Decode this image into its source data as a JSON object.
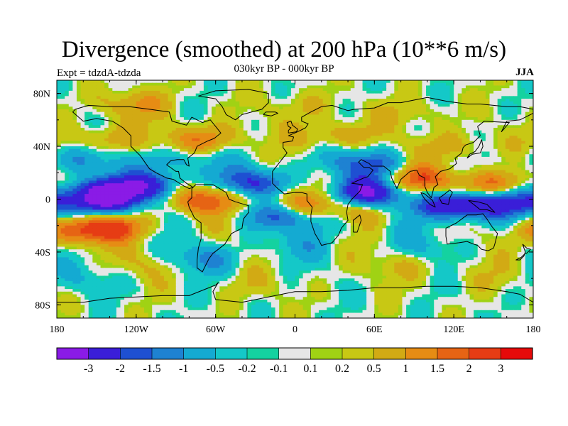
{
  "title": "Divergence (smoothed) at 200 hPa (10**6 m/s)",
  "subtitle": "030kyr BP - 000kyr BP",
  "experiment": "Expt = tdzdA-tdzda",
  "season": "JJA",
  "map": {
    "projection": "cylindrical equidistant",
    "lon_range": [
      -180,
      180
    ],
    "lat_range": [
      -90,
      90
    ],
    "lat_ticks": [
      {
        "value": 80,
        "label": "80N"
      },
      {
        "value": 40,
        "label": "40N"
      },
      {
        "value": 0,
        "label": "0"
      },
      {
        "value": -40,
        "label": "40S"
      },
      {
        "value": -80,
        "label": "80S"
      }
    ],
    "lon_ticks": [
      {
        "value": -180,
        "label": "180"
      },
      {
        "value": -120,
        "label": "120W"
      },
      {
        "value": -60,
        "label": "60W"
      },
      {
        "value": 0,
        "label": "0"
      },
      {
        "value": 60,
        "label": "60E"
      },
      {
        "value": 120,
        "label": "120E"
      },
      {
        "value": 180,
        "label": "180"
      }
    ]
  },
  "colorbar": {
    "colors": [
      "#8a1be6",
      "#3a1ed8",
      "#1e50d2",
      "#1e82d2",
      "#14aad2",
      "#14c8c8",
      "#14d2a0",
      "#e6e6e6",
      "#a0d214",
      "#c8c814",
      "#d2aa14",
      "#e68c14",
      "#e66414",
      "#e63c14",
      "#e60a0a"
    ],
    "labels": [
      "-3",
      "-2",
      "-1.5",
      "-1",
      "-0.5",
      "-0.2",
      "-0.1",
      "0.1",
      "0.2",
      "0.5",
      "1",
      "1.5",
      "2",
      "3"
    ]
  },
  "field_features": [
    {
      "lon": -145,
      "lat": 5,
      "value": -3.2
    },
    {
      "lon": -150,
      "lat": -5,
      "value": -2.0
    },
    {
      "lon": -110,
      "lat": 10,
      "value": -2.0
    },
    {
      "lon": -35,
      "lat": 12,
      "value": -2.0
    },
    {
      "lon": -12,
      "lat": -10,
      "value": -2.5
    },
    {
      "lon": 55,
      "lat": 5,
      "value": -3.0
    },
    {
      "lon": 120,
      "lat": -5,
      "value": -3.0
    },
    {
      "lon": 160,
      "lat": -2,
      "value": -2.0
    },
    {
      "lon": -160,
      "lat": 30,
      "value": -1.0
    },
    {
      "lon": -85,
      "lat": 30,
      "value": -1.0
    },
    {
      "lon": 60,
      "lat": 25,
      "value": -1.5
    },
    {
      "lon": -70,
      "lat": -45,
      "value": -1.0
    },
    {
      "lon": 30,
      "lat": -15,
      "value": -1.0
    },
    {
      "lon": -70,
      "lat": 0,
      "value": 2.0
    },
    {
      "lon": -5,
      "lat": -5,
      "value": 2.5
    },
    {
      "lon": -140,
      "lat": -20,
      "value": 2.0
    },
    {
      "lon": -165,
      "lat": -25,
      "value": 1.5
    },
    {
      "lon": 90,
      "lat": 15,
      "value": 2.0
    },
    {
      "lon": 150,
      "lat": 10,
      "value": 2.0
    },
    {
      "lon": 45,
      "lat": -10,
      "value": 1.5
    },
    {
      "lon": -70,
      "lat": 45,
      "value": 1.5
    },
    {
      "lon": -145,
      "lat": 45,
      "value": 1.0
    },
    {
      "lon": 30,
      "lat": 48,
      "value": 1.0
    },
    {
      "lon": 90,
      "lat": 65,
      "value": 0.5
    },
    {
      "lon": 5,
      "lat": 70,
      "value": 0.5
    },
    {
      "lon": -120,
      "lat": 72,
      "value": 1.0
    },
    {
      "lon": 120,
      "lat": 40,
      "value": 0.8
    },
    {
      "lon": 30,
      "lat": 30,
      "value": -0.5
    },
    {
      "lon": -110,
      "lat": -50,
      "value": 0.5
    },
    {
      "lon": 80,
      "lat": -50,
      "value": 0.5
    },
    {
      "lon": -30,
      "lat": -65,
      "value": 0.3
    },
    {
      "lon": 100,
      "lat": -35,
      "value": -0.5
    },
    {
      "lon": 0,
      "lat": -35,
      "value": -0.5
    },
    {
      "lon": -160,
      "lat": -60,
      "value": -0.5
    },
    {
      "lon": 150,
      "lat": -60,
      "value": 0.3
    }
  ]
}
